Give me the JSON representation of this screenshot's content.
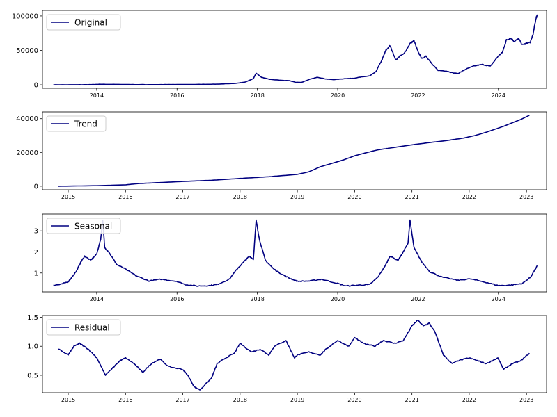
{
  "chart_data": [
    {
      "type": "line",
      "series": [
        {
          "name": "Original",
          "color": "#000080",
          "x": [
            2012.92,
            2013.5,
            2013.9,
            2014.1,
            2014.5,
            2015.0,
            2015.5,
            2016.0,
            2016.5,
            2017.0,
            2017.4,
            2017.7,
            2017.9,
            2017.97,
            2018.1,
            2018.3,
            2018.6,
            2018.8,
            2018.95,
            2019.1,
            2019.3,
            2019.5,
            2019.7,
            2019.9,
            2020.2,
            2020.4,
            2020.6,
            2020.8,
            2020.95,
            2021.1,
            2021.2,
            2021.3,
            2021.45,
            2021.55,
            2021.65,
            2021.8,
            2021.9,
            2022.0,
            2022.1,
            2022.2,
            2022.35,
            2022.5,
            2022.7,
            2022.9,
            2023.0,
            2023.2,
            2023.4,
            2023.6,
            2023.8,
            2024.0,
            2024.1,
            2024.2,
            2024.3,
            2024.4,
            2024.5,
            2024.6,
            2024.7,
            2024.8,
            2024.87,
            2024.93,
            2024.97
          ],
          "values": [
            0,
            100,
            300,
            800,
            600,
            300,
            250,
            400,
            600,
            1000,
            1800,
            4000,
            9000,
            17000,
            11000,
            8000,
            6500,
            6000,
            3700,
            3500,
            8000,
            11000,
            8500,
            7500,
            9000,
            9500,
            11500,
            13000,
            19000,
            36000,
            50000,
            57000,
            36000,
            42000,
            45000,
            60000,
            64000,
            48000,
            38000,
            42000,
            30000,
            21000,
            20000,
            17000,
            16500,
            23000,
            27500,
            29500,
            27000,
            42000,
            47000,
            65000,
            68000,
            63000,
            67000,
            58000,
            60000,
            62000,
            75000,
            95000,
            102000
          ]
        }
      ],
      "xticks": [
        "2014",
        "2016",
        "2018",
        "2020",
        "2022",
        "2024"
      ],
      "yticks": [
        "0",
        "50000",
        "100000"
      ],
      "xlim": [
        2012.65,
        2025.2
      ],
      "ylim": [
        -5000,
        108000
      ],
      "legend": "top-left"
    },
    {
      "type": "line",
      "series": [
        {
          "name": "Trend",
          "color": "#000080",
          "x": [
            2014.83,
            2015.5,
            2016.0,
            2016.2,
            2016.5,
            2017.0,
            2017.5,
            2018.0,
            2018.5,
            2019.0,
            2019.2,
            2019.4,
            2019.6,
            2019.8,
            2020.0,
            2020.2,
            2020.4,
            2020.6,
            2020.8,
            2021.0,
            2021.3,
            2021.6,
            2021.9,
            2022.1,
            2022.3,
            2022.6,
            2022.9,
            2023.05
          ],
          "values": [
            0,
            300,
            800,
            1500,
            2000,
            2800,
            3500,
            4600,
            5600,
            7000,
            8500,
            11500,
            13500,
            15500,
            18000,
            19800,
            21500,
            22500,
            23500,
            24500,
            25800,
            27000,
            28500,
            30000,
            32000,
            35500,
            39500,
            42000
          ]
        }
      ],
      "xticks": [
        "2015",
        "2016",
        "2017",
        "2018",
        "2019",
        "2020",
        "2021",
        "2022",
        "2023"
      ],
      "yticks": [
        "0",
        "20000",
        "40000"
      ],
      "xlim": [
        2014.55,
        2023.35
      ],
      "ylim": [
        -2100,
        44000
      ],
      "legend": "top-left"
    },
    {
      "type": "line",
      "series": [
        {
          "name": "Seasonal",
          "color": "#000080",
          "x": [
            2012.92,
            2013.1,
            2013.3,
            2013.5,
            2013.6,
            2013.7,
            2013.85,
            2014.0,
            2014.1,
            2014.15,
            2014.2,
            2014.3,
            2014.5,
            2014.7,
            2015.0,
            2015.3,
            2015.6,
            2016.0,
            2016.2,
            2016.5,
            2016.8,
            2017.0,
            2017.3,
            2017.5,
            2017.7,
            2017.8,
            2017.9,
            2017.97,
            2018.05,
            2018.2,
            2018.4,
            2018.6,
            2018.8,
            2019.0,
            2019.3,
            2019.6,
            2020.0,
            2020.2,
            2020.5,
            2020.8,
            2021.0,
            2021.2,
            2021.3,
            2021.5,
            2021.6,
            2021.75,
            2021.8,
            2021.9,
            2022.1,
            2022.3,
            2022.6,
            2023.0,
            2023.3,
            2023.7,
            2024.0,
            2024.3,
            2024.6,
            2024.8,
            2024.97
          ],
          "values": [
            0.42,
            0.45,
            0.6,
            1.1,
            1.5,
            1.8,
            1.6,
            1.9,
            2.6,
            3.5,
            2.2,
            2.0,
            1.4,
            1.2,
            0.85,
            0.62,
            0.7,
            0.6,
            0.45,
            0.38,
            0.4,
            0.45,
            0.7,
            1.2,
            1.6,
            1.8,
            1.65,
            3.5,
            2.6,
            1.6,
            1.2,
            0.95,
            0.75,
            0.6,
            0.62,
            0.7,
            0.5,
            0.38,
            0.42,
            0.45,
            0.8,
            1.4,
            1.8,
            1.6,
            1.9,
            2.4,
            3.5,
            2.2,
            1.5,
            1.05,
            0.8,
            0.65,
            0.72,
            0.55,
            0.4,
            0.42,
            0.5,
            0.8,
            1.35
          ]
        }
      ],
      "xticks": [
        "2014",
        "2016",
        "2018",
        "2020",
        "2022",
        "2024"
      ],
      "yticks": [
        "1",
        "2",
        "3"
      ],
      "xlim": [
        2012.65,
        2025.2
      ],
      "ylim": [
        0.1,
        3.8
      ],
      "legend": "top-left"
    },
    {
      "type": "line",
      "series": [
        {
          "name": "Residual",
          "color": "#000080",
          "x": [
            2014.83,
            2015.0,
            2015.1,
            2015.2,
            2015.35,
            2015.5,
            2015.65,
            2015.9,
            2016.0,
            2016.15,
            2016.3,
            2016.45,
            2016.6,
            2016.75,
            2017.0,
            2017.1,
            2017.2,
            2017.3,
            2017.5,
            2017.6,
            2017.75,
            2017.9,
            2018.0,
            2018.2,
            2018.35,
            2018.5,
            2018.6,
            2018.8,
            2018.95,
            2019.0,
            2019.2,
            2019.4,
            2019.5,
            2019.7,
            2019.9,
            2020.0,
            2020.15,
            2020.35,
            2020.5,
            2020.7,
            2020.85,
            2021.0,
            2021.1,
            2021.2,
            2021.3,
            2021.4,
            2021.55,
            2021.7,
            2021.8,
            2022.0,
            2022.15,
            2022.3,
            2022.5,
            2022.6,
            2022.75,
            2022.9,
            2023.05
          ],
          "values": [
            0.95,
            0.85,
            1.0,
            1.05,
            0.95,
            0.8,
            0.5,
            0.75,
            0.8,
            0.7,
            0.55,
            0.7,
            0.78,
            0.65,
            0.6,
            0.48,
            0.3,
            0.25,
            0.45,
            0.7,
            0.8,
            0.88,
            1.05,
            0.9,
            0.95,
            0.85,
            1.0,
            1.1,
            0.8,
            0.85,
            0.9,
            0.85,
            0.95,
            1.1,
            1.0,
            1.15,
            1.05,
            1.0,
            1.1,
            1.05,
            1.1,
            1.35,
            1.45,
            1.35,
            1.4,
            1.25,
            0.85,
            0.7,
            0.75,
            0.8,
            0.75,
            0.7,
            0.8,
            0.6,
            0.7,
            0.75,
            0.88
          ]
        }
      ],
      "xticks": [
        "2015",
        "2016",
        "2017",
        "2018",
        "2019",
        "2020",
        "2021",
        "2022",
        "2023"
      ],
      "yticks": [
        "0.5",
        "1.0",
        "1.5"
      ],
      "xlim": [
        2014.55,
        2023.35
      ],
      "ylim": [
        0.2,
        1.53
      ],
      "legend": "top-left"
    }
  ]
}
